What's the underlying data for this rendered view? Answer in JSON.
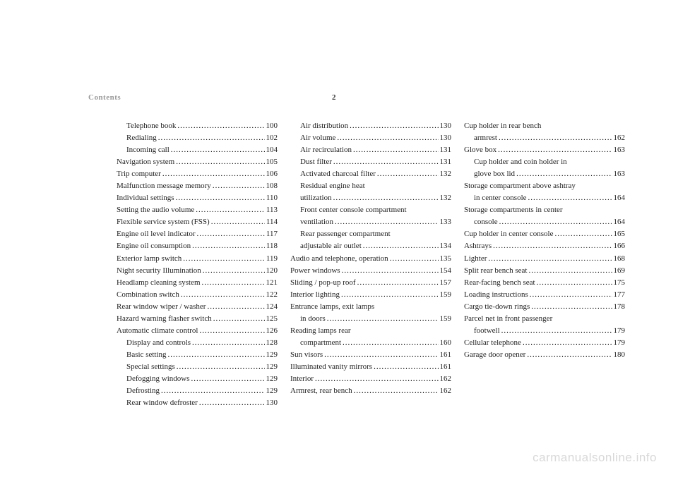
{
  "header": {
    "section": "Contents",
    "pageNumber": "2"
  },
  "watermark": "carmanualsonline.info",
  "columns": [
    [
      {
        "label": "Telephone book",
        "page": "100",
        "indent": 1
      },
      {
        "label": "Redialing",
        "page": "102",
        "indent": 1
      },
      {
        "label": "Incoming call",
        "page": "104",
        "indent": 1
      },
      {
        "label": "Navigation system",
        "page": "105",
        "indent": 0
      },
      {
        "label": "Trip computer",
        "page": "106",
        "indent": 0
      },
      {
        "label": "Malfunction message memory",
        "page": "108",
        "indent": 0
      },
      {
        "label": "Individual settings",
        "page": "110",
        "indent": 0
      },
      {
        "label": "Setting the audio volume",
        "page": "113",
        "indent": 0
      },
      {
        "label": "Flexible service system (FSS)",
        "page": "114",
        "indent": 0
      },
      {
        "label": "Engine oil level indicator",
        "page": "117",
        "indent": 0
      },
      {
        "label": "Engine oil consumption",
        "page": "118",
        "indent": 0
      },
      {
        "label": "Exterior lamp switch",
        "page": "119",
        "indent": 0
      },
      {
        "label": "Night security Illumination",
        "page": "120",
        "indent": 0
      },
      {
        "label": "Headlamp cleaning system",
        "page": "121",
        "indent": 0
      },
      {
        "label": "Combination switch",
        "page": "122",
        "indent": 0
      },
      {
        "label": "Rear window wiper / washer",
        "page": "124",
        "indent": 0
      },
      {
        "label": "Hazard warning flasher switch",
        "page": "125",
        "indent": 0
      },
      {
        "label": "Automatic climate control",
        "page": "126",
        "indent": 0
      },
      {
        "label": "Display and controls",
        "page": "128",
        "indent": 1
      },
      {
        "label": "Basic setting",
        "page": "129",
        "indent": 1
      },
      {
        "label": "Special settings",
        "page": "129",
        "indent": 1
      },
      {
        "label": "Defogging windows",
        "page": "129",
        "indent": 1
      },
      {
        "label": "Defrosting",
        "page": "129",
        "indent": 1
      },
      {
        "label": "Rear window defroster",
        "page": "130",
        "indent": 1
      }
    ],
    [
      {
        "label": "Air distribution",
        "page": "130",
        "indent": 1
      },
      {
        "label": "Air volume",
        "page": "130",
        "indent": 1
      },
      {
        "label": "Air recirculation",
        "page": "131",
        "indent": 1
      },
      {
        "label": "Dust filter",
        "page": "131",
        "indent": 1
      },
      {
        "label": "Activated charcoal filter",
        "page": "132",
        "indent": 1
      },
      {
        "label": "Residual engine heat",
        "cont": true,
        "indent": 1
      },
      {
        "label": "utilization",
        "page": "132",
        "indent": 1
      },
      {
        "label": "Front center console compartment",
        "cont": true,
        "indent": 1
      },
      {
        "label": "ventilation",
        "page": "133",
        "indent": 1
      },
      {
        "label": "Rear passenger compartment",
        "cont": true,
        "indent": 1
      },
      {
        "label": "adjustable air outlet",
        "page": "134",
        "indent": 1
      },
      {
        "label": "Audio and telephone, operation",
        "page": "135",
        "indent": 0
      },
      {
        "label": "Power windows",
        "page": "154",
        "indent": 0
      },
      {
        "label": "Sliding / pop-up roof",
        "page": "157",
        "indent": 0
      },
      {
        "label": "Interior lighting",
        "page": "159",
        "indent": 0
      },
      {
        "label": "Entrance lamps, exit lamps",
        "cont": true,
        "indent": 0
      },
      {
        "label": "in doors",
        "page": "159",
        "indent": 1
      },
      {
        "label": "Reading lamps rear",
        "cont": true,
        "indent": 0
      },
      {
        "label": "compartment",
        "page": "160",
        "indent": 1
      },
      {
        "label": "Sun visors",
        "page": "161",
        "indent": 0
      },
      {
        "label": "Illuminated vanity mirrors",
        "page": "161",
        "indent": 0
      },
      {
        "label": "Interior",
        "page": "162",
        "indent": 0
      },
      {
        "label": "Armrest, rear bench",
        "page": "162",
        "indent": 0
      }
    ],
    [
      {
        "label": "Cup holder in rear bench",
        "cont": true,
        "indent": 0
      },
      {
        "label": "armrest",
        "page": "162",
        "indent": 1
      },
      {
        "label": "Glove box",
        "page": "163",
        "indent": 0
      },
      {
        "label": "Cup holder and coin holder in",
        "cont": true,
        "indent": 1
      },
      {
        "label": "glove box lid",
        "page": "163",
        "indent": 1
      },
      {
        "label": "Storage compartment above ashtray",
        "cont": true,
        "indent": 0
      },
      {
        "label": "in center console",
        "page": "164",
        "indent": 1
      },
      {
        "label": "Storage compartments in center",
        "cont": true,
        "indent": 0
      },
      {
        "label": "console",
        "page": "164",
        "indent": 1
      },
      {
        "label": "Cup holder in center console",
        "page": "165",
        "indent": 0
      },
      {
        "label": "Ashtrays",
        "page": "166",
        "indent": 0
      },
      {
        "label": "Lighter",
        "page": "168",
        "indent": 0
      },
      {
        "label": "Split rear bench seat",
        "page": "169",
        "indent": 0
      },
      {
        "label": "Rear-facing bench seat",
        "page": "175",
        "indent": 0
      },
      {
        "label": "Loading instructions",
        "page": "177",
        "indent": 0
      },
      {
        "label": "Cargo tie-down rings",
        "page": "178",
        "indent": 0
      },
      {
        "label": "Parcel net in front passenger",
        "cont": true,
        "indent": 0
      },
      {
        "label": "footwell",
        "page": "179",
        "indent": 1
      },
      {
        "label": "Cellular telephone",
        "page": "179",
        "indent": 0
      },
      {
        "label": "Garage door opener",
        "page": "180",
        "indent": 0
      }
    ]
  ]
}
